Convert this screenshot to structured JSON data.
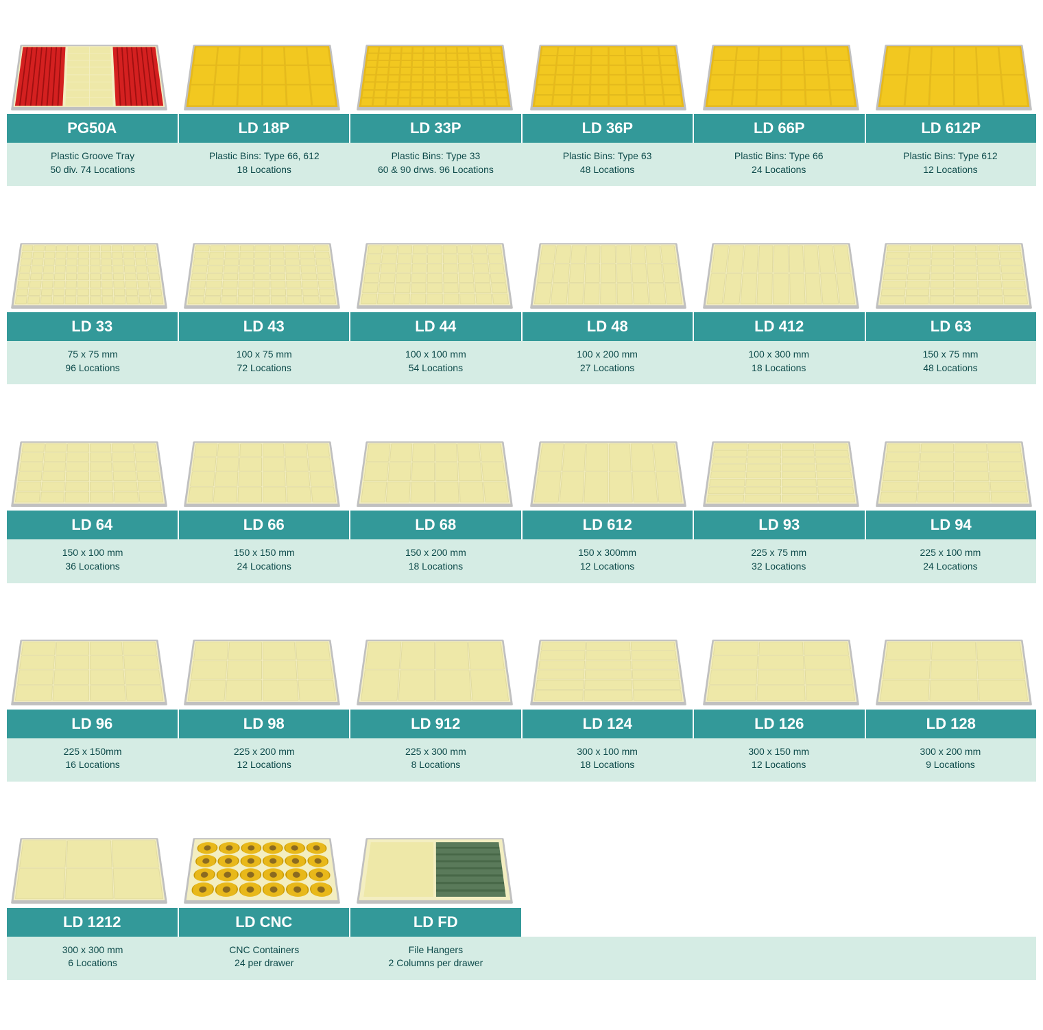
{
  "colors": {
    "title_bg": "#339999",
    "title_fg": "#ffffff",
    "desc_bg": "#d5ece4",
    "desc_fg": "#0d4a4a",
    "tray_cream_bg": "#f3eec1",
    "tray_cream_cell": "#eee8a8",
    "tray_yellow_bg": "#e8b81a",
    "tray_yellow_cell": "#f2c820",
    "tray_red_cell": "#d42020",
    "tray_frame": "#c0c0c0"
  },
  "rows": [
    {
      "items": [
        {
          "code": "PG50A",
          "desc1": "Plastic Groove Tray",
          "desc2": "50 div. 74 Locations",
          "tray": {
            "type": "pg50a"
          }
        },
        {
          "code": "LD 18P",
          "desc1": "Plastic Bins: Type 66, 612",
          "desc2": "18 Locations",
          "tray": {
            "type": "yellow",
            "cols": 6,
            "rows": 3
          }
        },
        {
          "code": "LD 33P",
          "desc1": "Plastic Bins: Type 33",
          "desc2": "60 & 90 drws. 96 Locations",
          "tray": {
            "type": "yellow",
            "cols": 12,
            "rows": 8
          }
        },
        {
          "code": "LD 36P",
          "desc1": "Plastic Bins: Type 63",
          "desc2": "48 Locations",
          "tray": {
            "type": "yellow",
            "cols": 8,
            "rows": 6
          }
        },
        {
          "code": "LD 66P",
          "desc1": "Plastic Bins: Type 66",
          "desc2": "24 Locations",
          "tray": {
            "type": "yellow",
            "cols": 6,
            "rows": 4
          }
        },
        {
          "code": "LD 612P",
          "desc1": "Plastic Bins: Type 612",
          "desc2": "12 Locations",
          "tray": {
            "type": "yellow",
            "cols": 6,
            "rows": 2
          }
        }
      ]
    },
    {
      "items": [
        {
          "code": "LD 33",
          "desc1": "75 x 75 mm",
          "desc2": "96 Locations",
          "tray": {
            "type": "cream",
            "cols": 12,
            "rows": 8
          }
        },
        {
          "code": "LD 43",
          "desc1": "100 x 75 mm",
          "desc2": "72 Locations",
          "tray": {
            "type": "cream",
            "cols": 9,
            "rows": 8
          }
        },
        {
          "code": "LD 44",
          "desc1": "100 x 100 mm",
          "desc2": "54 Locations",
          "tray": {
            "type": "cream",
            "cols": 9,
            "rows": 6
          }
        },
        {
          "code": "LD 48",
          "desc1": "100 x 200 mm",
          "desc2": "27 Locations",
          "tray": {
            "type": "cream",
            "cols": 9,
            "rows": 3
          }
        },
        {
          "code": "LD 412",
          "desc1": "100 x 300 mm",
          "desc2": "18 Locations",
          "tray": {
            "type": "cream",
            "cols": 9,
            "rows": 2
          }
        },
        {
          "code": "LD 63",
          "desc1": "150 x 75 mm",
          "desc2": "48 Locations",
          "tray": {
            "type": "cream",
            "cols": 6,
            "rows": 8
          }
        }
      ]
    },
    {
      "items": [
        {
          "code": "LD 64",
          "desc1": "150 x 100 mm",
          "desc2": "36 Locations",
          "tray": {
            "type": "cream",
            "cols": 6,
            "rows": 6
          }
        },
        {
          "code": "LD 66",
          "desc1": "150 x 150 mm",
          "desc2": "24 Locations",
          "tray": {
            "type": "cream",
            "cols": 6,
            "rows": 4
          }
        },
        {
          "code": "LD 68",
          "desc1": "150 x 200 mm",
          "desc2": "18 Locations",
          "tray": {
            "type": "cream",
            "cols": 6,
            "rows": 3
          }
        },
        {
          "code": "LD 612",
          "desc1": "150 x 300mm",
          "desc2": "12 Locations",
          "tray": {
            "type": "cream",
            "cols": 6,
            "rows": 2
          }
        },
        {
          "code": "LD 93",
          "desc1": "225 x 75 mm",
          "desc2": "32 Locations",
          "tray": {
            "type": "cream",
            "cols": 4,
            "rows": 8
          }
        },
        {
          "code": "LD 94",
          "desc1": "225 x 100 mm",
          "desc2": "24 Locations",
          "tray": {
            "type": "cream",
            "cols": 4,
            "rows": 6
          }
        }
      ]
    },
    {
      "items": [
        {
          "code": "LD 96",
          "desc1": "225 x 150mm",
          "desc2": "16 Locations",
          "tray": {
            "type": "cream",
            "cols": 4,
            "rows": 4
          }
        },
        {
          "code": "LD 98",
          "desc1": "225 x 200 mm",
          "desc2": "12 Locations",
          "tray": {
            "type": "cream",
            "cols": 4,
            "rows": 3
          }
        },
        {
          "code": "LD 912",
          "desc1": "225 x 300 mm",
          "desc2": "8 Locations",
          "tray": {
            "type": "cream",
            "cols": 4,
            "rows": 2
          }
        },
        {
          "code": "LD 124",
          "desc1": "300 x 100 mm",
          "desc2": "18 Locations",
          "tray": {
            "type": "cream",
            "cols": 3,
            "rows": 6
          }
        },
        {
          "code": "LD 126",
          "desc1": "300 x 150 mm",
          "desc2": "12 Locations",
          "tray": {
            "type": "cream",
            "cols": 3,
            "rows": 4
          }
        },
        {
          "code": "LD 128",
          "desc1": "300 x 200 mm",
          "desc2": "9 Locations",
          "tray": {
            "type": "cream",
            "cols": 3,
            "rows": 3
          }
        }
      ]
    },
    {
      "items": [
        {
          "code": "LD 1212",
          "desc1": "300 x 300 mm",
          "desc2": "6 Locations",
          "tray": {
            "type": "cream",
            "cols": 3,
            "rows": 2
          }
        },
        {
          "code": "LD CNC",
          "desc1": "CNC Containers",
          "desc2": "24 per drawer",
          "tray": {
            "type": "cnc"
          }
        },
        {
          "code": "LD FD",
          "desc1": "File Hangers",
          "desc2": "2 Columns per drawer",
          "tray": {
            "type": "fd"
          }
        }
      ]
    }
  ]
}
